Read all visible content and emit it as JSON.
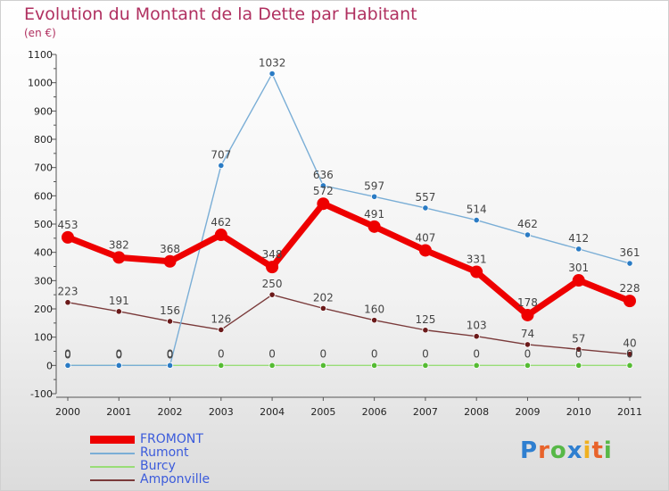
{
  "title": "Evolution du Montant de la Dette par Habitant",
  "subtitle": "(en €)",
  "brand": {
    "text": "Proxiti",
    "letter_colors": [
      "#2f7fd0",
      "#e8632b",
      "#57b847",
      "#2f7fd0",
      "#f0b020",
      "#e8632b",
      "#57b847"
    ]
  },
  "chart_data": {
    "type": "line",
    "title": "Evolution du Montant de la Dette par Habitant",
    "subtitle": "(en €)",
    "x": [
      2000,
      2001,
      2002,
      2003,
      2004,
      2005,
      2006,
      2007,
      2008,
      2009,
      2010,
      2011
    ],
    "ylim": [
      -100,
      1100
    ],
    "yticks": [
      -100,
      0,
      100,
      200,
      300,
      400,
      500,
      600,
      700,
      800,
      900,
      1000,
      1100
    ],
    "grid": false,
    "legend_position": "bottom-left",
    "series": [
      {
        "name": "FROMONT",
        "color": "#ee0000",
        "emphasis": true,
        "values": [
          453,
          382,
          368,
          462,
          348,
          572,
          491,
          407,
          331,
          178,
          301,
          228
        ],
        "labels": [
          "453",
          "382",
          "368",
          "462",
          "348",
          "572",
          "491",
          "407",
          "331",
          "178",
          "301",
          "228"
        ]
      },
      {
        "name": "Rumont",
        "color": "#7aaed6",
        "point_color": "#2a7bc4",
        "values": [
          0,
          0,
          0,
          707,
          1032,
          636,
          597,
          557,
          514,
          462,
          412,
          361
        ],
        "labels": [
          "0",
          "0",
          "0",
          "707",
          "1032",
          "636",
          "597",
          "557",
          "514",
          "462",
          "412",
          "361"
        ]
      },
      {
        "name": "Burcy",
        "color": "#99dd77",
        "point_color": "#55bb33",
        "values": [
          0,
          0,
          0,
          0,
          0,
          0,
          0,
          0,
          0,
          0,
          0,
          0
        ],
        "labels": [
          "0",
          "0",
          "0",
          "0",
          "0",
          "0",
          "0",
          "0",
          "0",
          "0",
          "0",
          "0"
        ]
      },
      {
        "name": "Amponville",
        "color": "#7a3a3a",
        "point_color": "#6b1a1a",
        "values": [
          223,
          191,
          156,
          126,
          250,
          202,
          160,
          125,
          103,
          74,
          57,
          40
        ],
        "labels": [
          "223",
          "191",
          "156",
          "126",
          "250",
          "202",
          "160",
          "125",
          "103",
          "74",
          "57",
          "40"
        ]
      }
    ]
  }
}
